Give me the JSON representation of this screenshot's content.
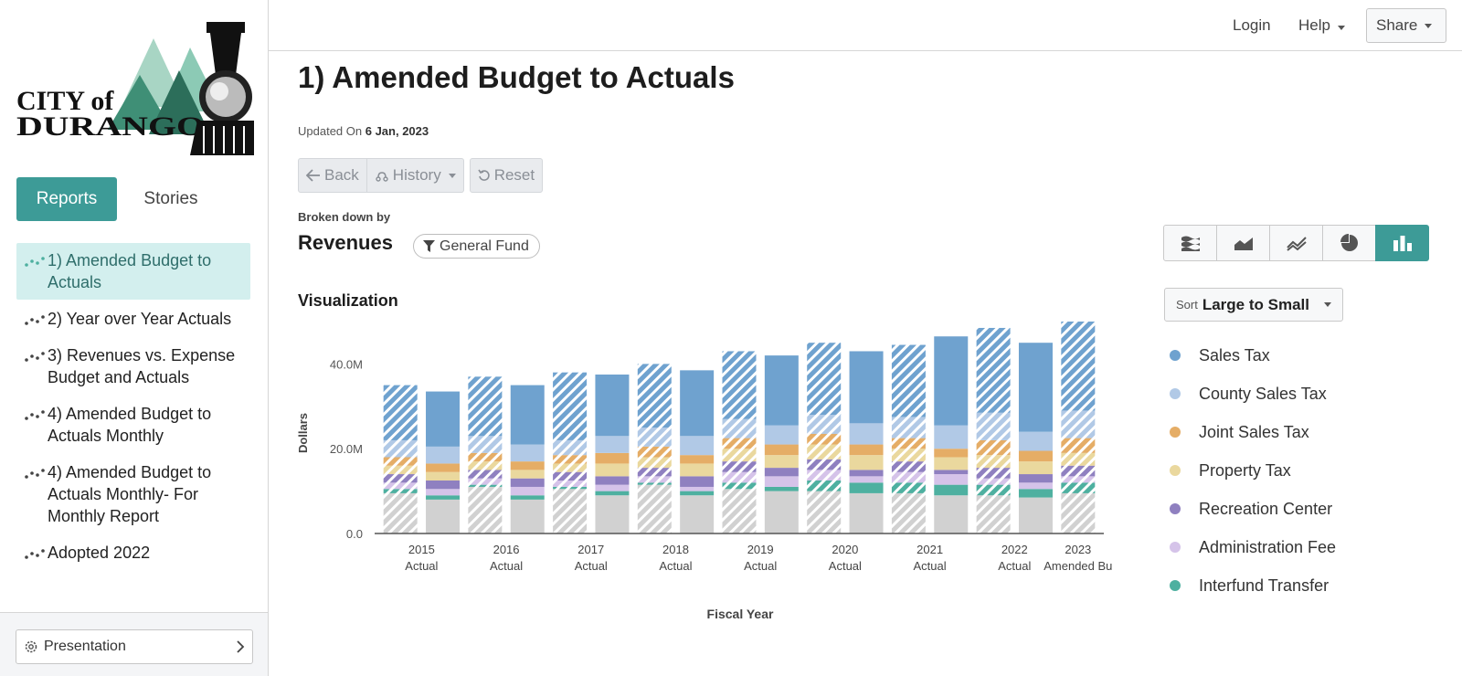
{
  "brand": {
    "logo_line1": "CITY of",
    "logo_line2": "DURANGO"
  },
  "sidebar": {
    "tabs": [
      "Reports",
      "Stories"
    ],
    "items": [
      {
        "label": "1) Amended Budget to Actuals",
        "active": true
      },
      {
        "label": "2) Year over Year Actuals"
      },
      {
        "label": "3) Revenues vs. Expense Budget and Actuals"
      },
      {
        "label": "4) Amended Budget to Actuals Monthly"
      },
      {
        "label": "4) Amended Budget to Actuals Monthly- For Monthly Report"
      },
      {
        "label": "Adopted 2022"
      }
    ],
    "footer_button": "Presentation"
  },
  "topbar": {
    "login": "Login",
    "help": "Help",
    "share": "Share"
  },
  "page": {
    "title": "1) Amended Budget to Actuals",
    "updated_prefix": "Updated On",
    "updated_date": "6 Jan, 2023",
    "buttons": {
      "back": "Back",
      "history": "History",
      "reset": "Reset"
    },
    "broken_down_by": "Broken down by",
    "breakdown": "Revenues",
    "filter": "General Fund",
    "viz_label": "Visualization",
    "sort_prefix": "Sort",
    "sort_value": "Large to Small"
  },
  "view_icons": [
    "stacked-area-icon",
    "area-icon",
    "line-icon",
    "pie-icon",
    "bar-icon"
  ],
  "legend": [
    {
      "name": "Sales Tax",
      "color": "#6fa2cf"
    },
    {
      "name": "County Sales Tax",
      "color": "#b1c9e6"
    },
    {
      "name": "Joint Sales Tax",
      "color": "#e5ad66"
    },
    {
      "name": "Property Tax",
      "color": "#ead89e"
    },
    {
      "name": "Recreation Center",
      "color": "#8f80c0"
    },
    {
      "name": "Administration Fee",
      "color": "#d5c3e9"
    },
    {
      "name": "Interfund Transfer",
      "color": "#4eb0a0"
    }
  ],
  "chart_data": {
    "type": "bar",
    "stacked": true,
    "xlabel": "Fiscal Year",
    "ylabel": "Dollars",
    "ylim": [
      0,
      50
    ],
    "yticks": [
      "0.0",
      "20.0M",
      "40.0M"
    ],
    "ytick_values": [
      0,
      20,
      40
    ],
    "year_labels": [
      "2015",
      "2016",
      "2017",
      "2018",
      "2019",
      "2020",
      "2021",
      "2022",
      "2023"
    ],
    "sub_labels": [
      "Actual",
      "Actual",
      "Actual",
      "Actual",
      "Actual",
      "Actual",
      "Actual",
      "Actual",
      "Amended Bu"
    ],
    "other_color": "#d1d1d1",
    "series_order": [
      "Other",
      "Interfund Transfer",
      "Administration Fee",
      "Recreation Center",
      "Property Tax",
      "Joint Sales Tax",
      "County Sales Tax",
      "Sales Tax"
    ],
    "bars": [
      {
        "hatched": true,
        "values": [
          9.5,
          1.0,
          1.5,
          2.0,
          2.0,
          2.0,
          4.0,
          13.0
        ]
      },
      {
        "hatched": false,
        "values": [
          8.0,
          1.0,
          1.5,
          2.0,
          2.0,
          2.0,
          4.0,
          13.0
        ]
      },
      {
        "hatched": true,
        "values": [
          11.0,
          0.5,
          1.5,
          2.0,
          2.0,
          2.0,
          4.0,
          14.0
        ]
      },
      {
        "hatched": false,
        "values": [
          8.0,
          1.0,
          2.0,
          2.0,
          2.0,
          2.0,
          4.0,
          14.0
        ]
      },
      {
        "hatched": true,
        "values": [
          10.5,
          0.5,
          1.5,
          2.0,
          2.0,
          2.0,
          3.5,
          16.0
        ]
      },
      {
        "hatched": false,
        "values": [
          9.0,
          1.0,
          1.5,
          2.0,
          3.0,
          2.5,
          4.0,
          14.5
        ]
      },
      {
        "hatched": true,
        "values": [
          11.5,
          0.5,
          1.5,
          2.0,
          2.5,
          2.5,
          4.5,
          15.0
        ]
      },
      {
        "hatched": false,
        "values": [
          9.0,
          1.0,
          1.0,
          2.5,
          3.0,
          2.0,
          4.5,
          15.5
        ]
      },
      {
        "hatched": true,
        "values": [
          10.5,
          1.5,
          2.5,
          2.5,
          3.0,
          2.5,
          4.5,
          16.0
        ]
      },
      {
        "hatched": false,
        "values": [
          10.0,
          1.0,
          2.5,
          2.0,
          3.0,
          2.5,
          4.5,
          16.5
        ]
      },
      {
        "hatched": true,
        "values": [
          10.0,
          2.5,
          2.5,
          2.5,
          3.5,
          2.5,
          4.5,
          17.0
        ]
      },
      {
        "hatched": false,
        "values": [
          9.5,
          2.5,
          1.5,
          1.5,
          3.5,
          2.5,
          5.0,
          17.0
        ]
      },
      {
        "hatched": true,
        "values": [
          9.5,
          2.5,
          2.5,
          2.5,
          3.0,
          2.5,
          5.0,
          17.0
        ]
      },
      {
        "hatched": false,
        "values": [
          9.0,
          2.5,
          2.5,
          1.0,
          3.0,
          2.0,
          5.5,
          21.0
        ]
      },
      {
        "hatched": true,
        "values": [
          9.0,
          2.5,
          1.5,
          2.5,
          3.0,
          3.5,
          6.5,
          20.0
        ]
      },
      {
        "hatched": false,
        "values": [
          8.5,
          2.0,
          1.5,
          2.0,
          3.0,
          2.5,
          4.5,
          21.0
        ]
      },
      {
        "hatched": true,
        "values": [
          9.5,
          2.5,
          1.5,
          2.5,
          3.0,
          3.5,
          6.5,
          21.5
        ]
      }
    ]
  }
}
